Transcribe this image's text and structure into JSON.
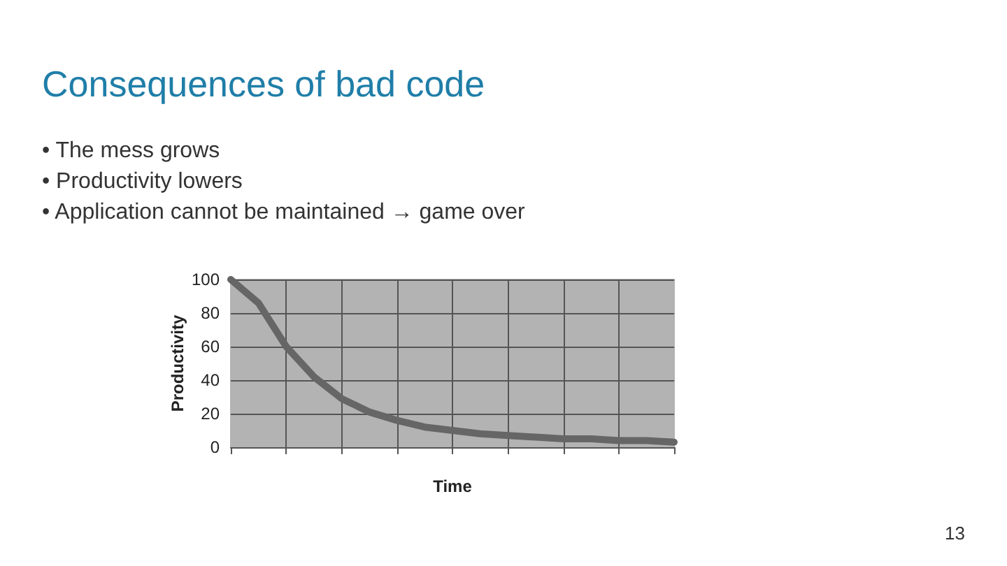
{
  "chart_data": {
    "type": "line",
    "title": "Consequences of bad code",
    "annotations": [
      "• The mess grows",
      "• Productivity lowers",
      "• Application cannot be maintained → game over",
      "13"
    ],
    "categories": [
      null,
      null,
      null,
      null,
      null,
      null,
      null,
      null,
      null,
      null,
      null,
      null,
      null,
      null,
      null,
      null,
      null
    ],
    "series": [
      {
        "color": "#666666",
        "values": [
          100,
          86,
          60,
          42,
          29,
          21,
          16,
          12,
          10,
          8,
          7,
          6,
          5,
          5,
          4,
          4,
          3
        ]
      }
    ],
    "xlabel": "Time",
    "ylabel": "Productivity",
    "ylim": [
      0,
      100
    ],
    "yticks": [
      0,
      20,
      40,
      60,
      80,
      100
    ],
    "grid": true,
    "tick_labels": "y",
    "marker": "none",
    "line_style": "solid"
  }
}
